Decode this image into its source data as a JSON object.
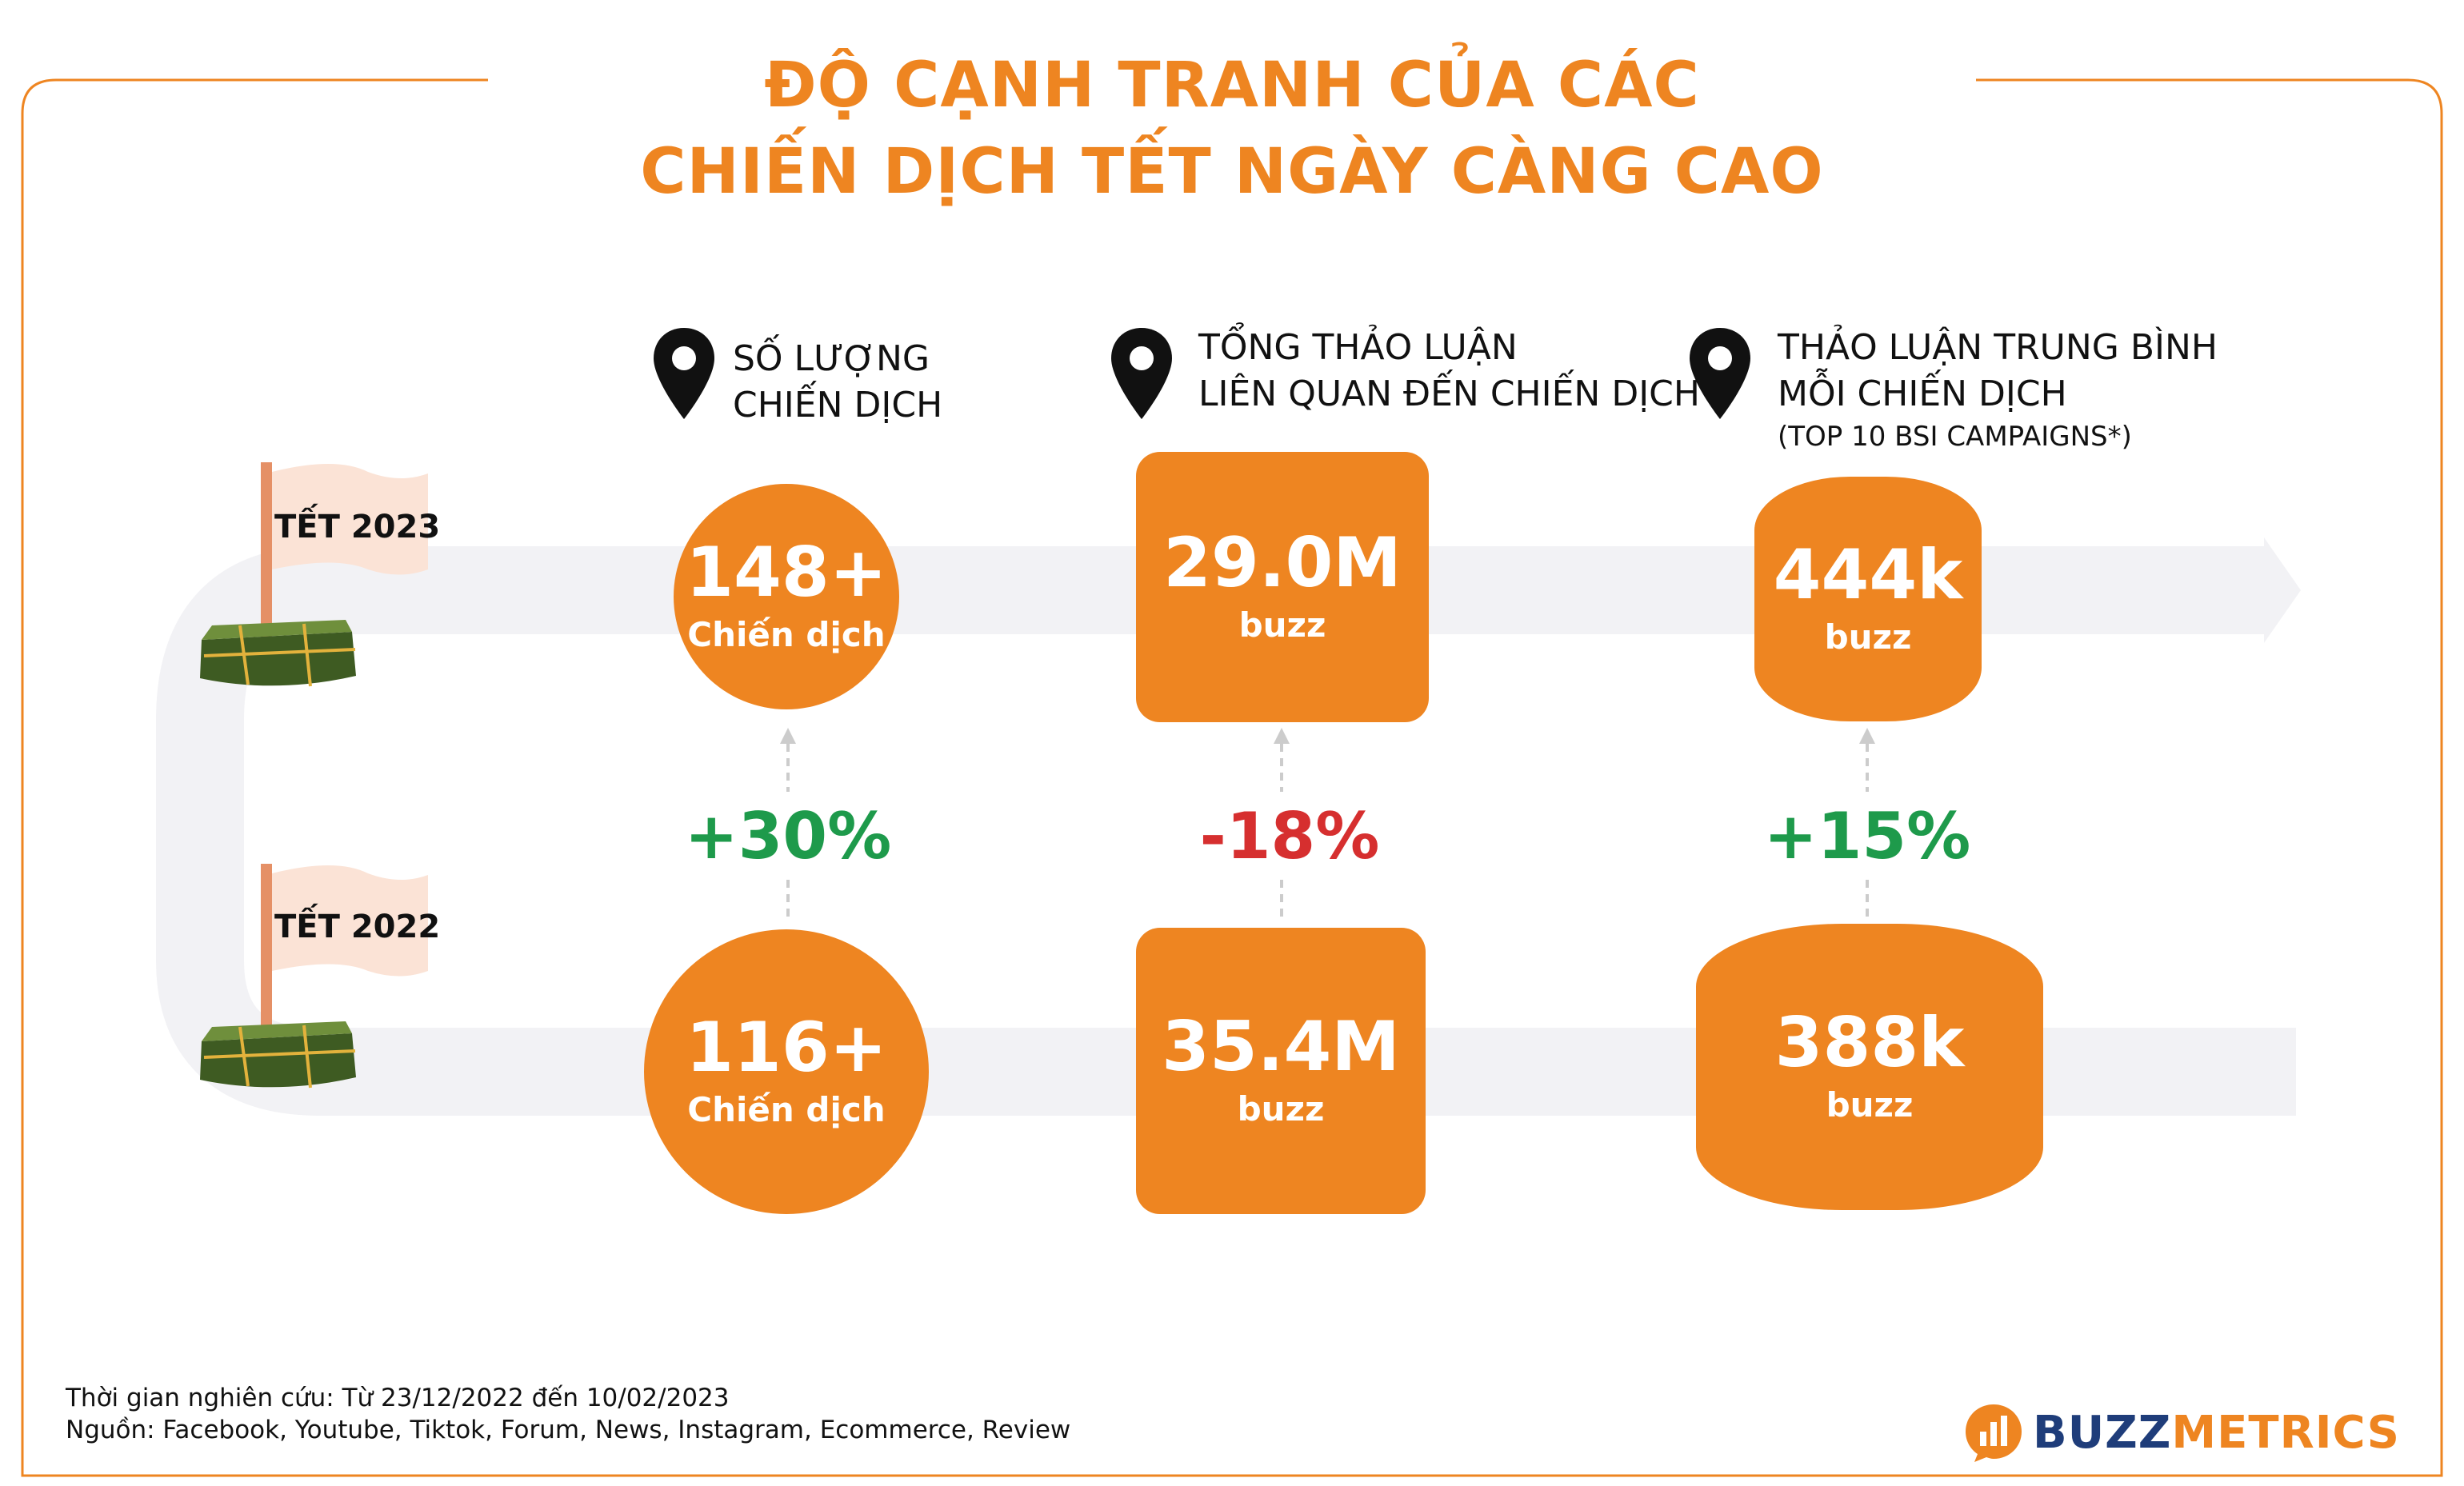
{
  "title": {
    "line1": "ĐỘ CẠNH TRANH CỦA CÁC",
    "line2": "CHIẾN DỊCH TẾT NGÀY CÀNG CAO"
  },
  "columns": [
    {
      "heading_line1": "SỐ LƯỢNG",
      "heading_line2": "CHIẾN DỊCH",
      "subheading": ""
    },
    {
      "heading_line1": "TỔNG THẢO LUẬN",
      "heading_line2": "LIÊN QUAN ĐẾN CHIẾN DỊCH",
      "subheading": ""
    },
    {
      "heading_line1": "THẢO LUẬN TRUNG BÌNH",
      "heading_line2": "MỖI CHIẾN DỊCH",
      "subheading": "(TOP 10 BSI CAMPAIGNS*)"
    }
  ],
  "rows": {
    "tet2023": {
      "label": "TẾT 2023",
      "campaigns": {
        "value": "148+",
        "unit": "Chiến dịch"
      },
      "total_buzz": {
        "value": "29.0M",
        "unit": "buzz"
      },
      "avg_buzz": {
        "value": "444k",
        "unit": "buzz"
      }
    },
    "tet2022": {
      "label": "TẾT 2022",
      "campaigns": {
        "value": "116+",
        "unit": "Chiến dịch"
      },
      "total_buzz": {
        "value": "35.4M",
        "unit": "buzz"
      },
      "avg_buzz": {
        "value": "388k",
        "unit": "buzz"
      }
    }
  },
  "changes": {
    "campaigns": {
      "text": "+30%",
      "color": "#1e9a4b"
    },
    "total_buzz": {
      "text": "-18%",
      "color": "#d62f2f"
    },
    "avg_buzz": {
      "text": "+15%",
      "color": "#1e9a4b"
    }
  },
  "footer": {
    "period": "Thời gian nghiên cứu: Từ 23/12/2022 đến 10/02/2023",
    "sources": "Nguồn: Facebook, Youtube, Tiktok, Forum, News, Instagram, Ecommerce, Review"
  },
  "brand": {
    "part1": "BUZZ",
    "part2": "METRICS",
    "logo_icon": "bar-chart-speech-bubble-icon"
  },
  "colors": {
    "accent": "#ee8521",
    "track": "#f2f2f5",
    "flag": "#fbe3d6",
    "banhchung": "#4a6b2a"
  }
}
